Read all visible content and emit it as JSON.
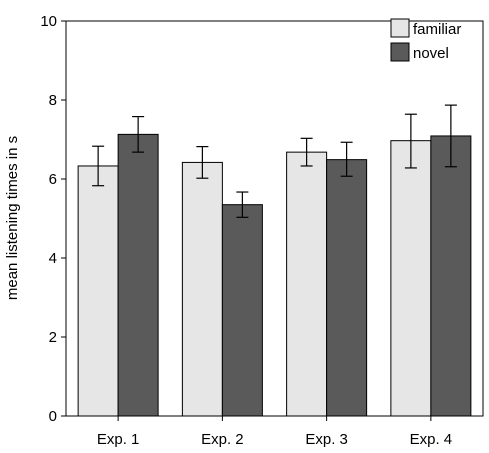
{
  "chart_data": {
    "type": "bar",
    "categories": [
      "Exp. 1",
      "Exp. 2",
      "Exp. 3",
      "Exp. 4"
    ],
    "series": [
      {
        "name": "familiar",
        "color": "#e6e6e6",
        "values": [
          6.33,
          6.42,
          6.68,
          6.97
        ],
        "error_low": [
          5.83,
          6.02,
          6.33,
          6.28
        ],
        "error_high": [
          6.83,
          6.82,
          7.03,
          7.64
        ]
      },
      {
        "name": "novel",
        "color": "#5a5a5a",
        "values": [
          7.13,
          5.35,
          6.49,
          7.09
        ],
        "error_low": [
          6.68,
          5.03,
          6.07,
          6.31
        ],
        "error_high": [
          7.58,
          5.67,
          6.93,
          7.87
        ]
      }
    ],
    "xlabel": "",
    "ylabel": "mean listening times in s",
    "ylim": [
      0,
      10
    ],
    "yticks": [
      "0",
      "2",
      "4",
      "6",
      "8",
      "10"
    ],
    "grid": false,
    "legend_position": "top-right"
  }
}
